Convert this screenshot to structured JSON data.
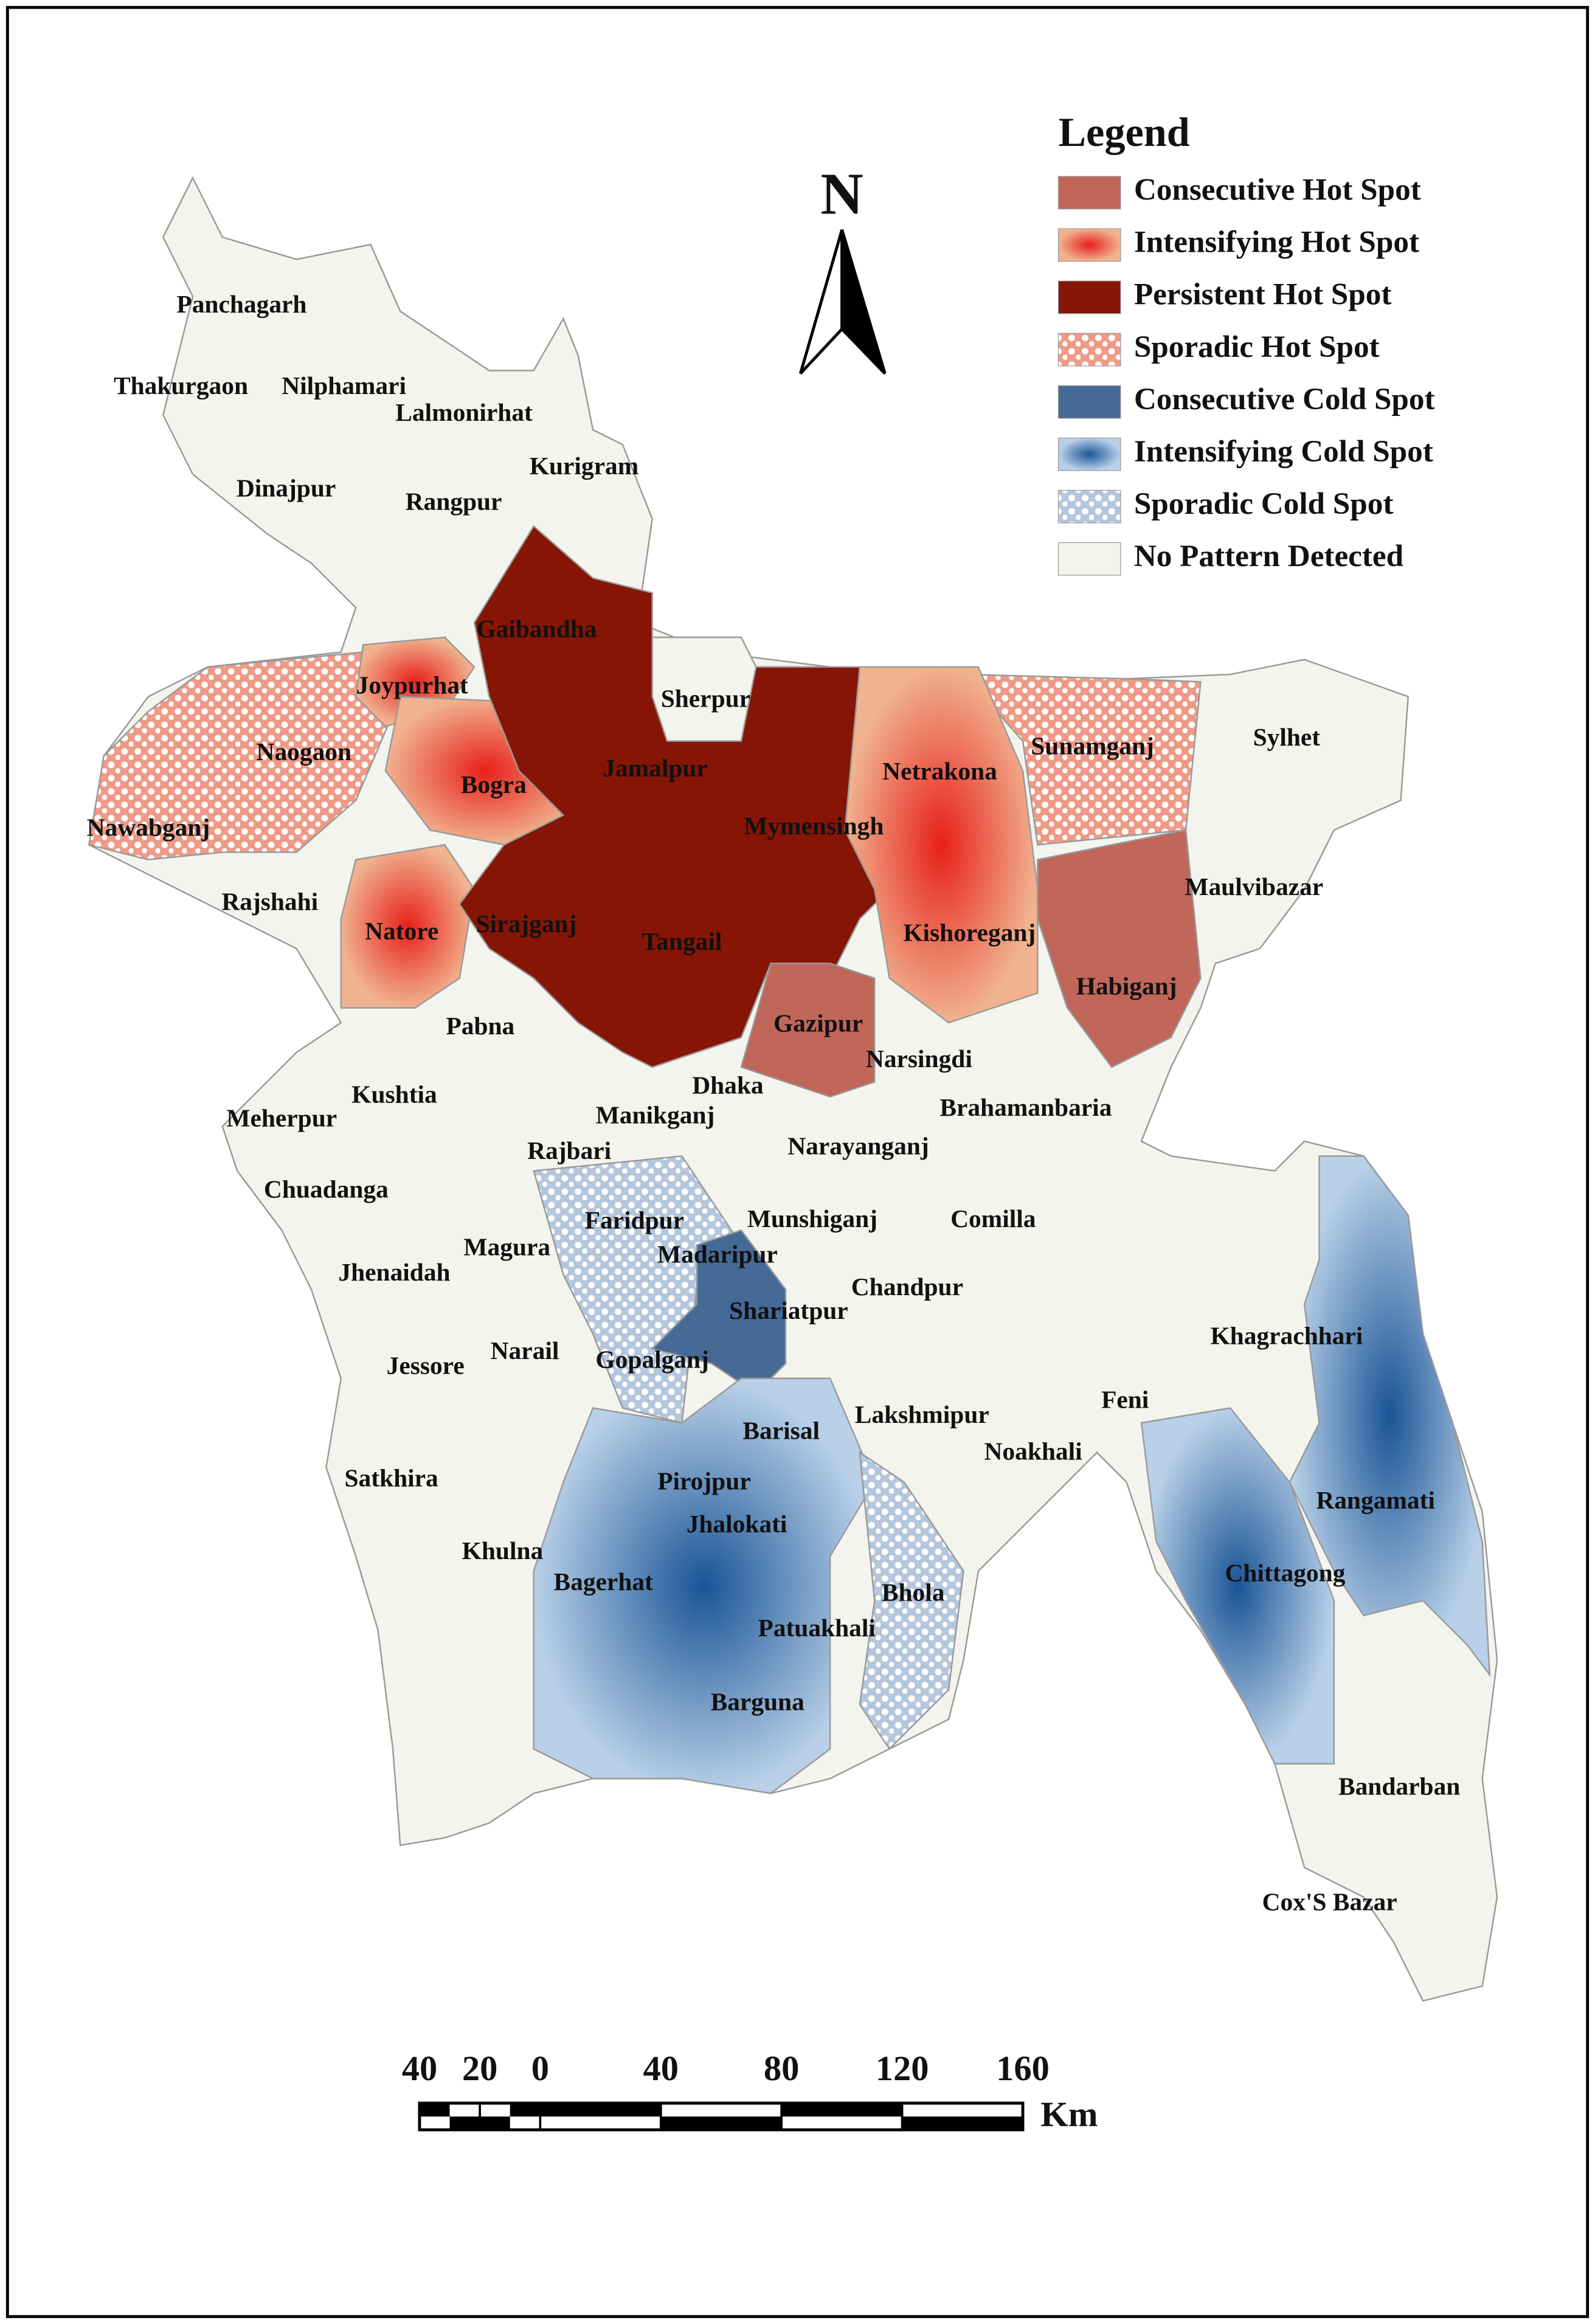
{
  "map": {
    "legend": {
      "title": "Legend",
      "items": [
        {
          "name": "Consecutive Hot Spot",
          "color": "#c0675a",
          "fill": "solid"
        },
        {
          "name": "Intensifying Hot Spot",
          "color": "#e8201a",
          "fill": "gradient"
        },
        {
          "name": "Persistent Hot Spot",
          "color": "#861505",
          "fill": "solid"
        },
        {
          "name": "Sporadic Hot Spot",
          "color": "#ee9a86",
          "fill": "dots"
        },
        {
          "name": "Consecutive Cold Spot",
          "color": "#466a96",
          "fill": "solid"
        },
        {
          "name": "Intensifying Cold Spot",
          "color": "#1e5a98",
          "fill": "gradient"
        },
        {
          "name": "Sporadic Cold Spot",
          "color": "#a9bdd6",
          "fill": "dots"
        },
        {
          "name": "No Pattern Detected",
          "color": "#f4f4ef",
          "fill": "solid"
        }
      ]
    },
    "north": "N",
    "districts": [
      "Panchagarh",
      "Thakurgaon",
      "Nilphamari",
      "Lalmonirhat",
      "Kurigram",
      "Dinajpur",
      "Rangpur",
      "Gaibandha",
      "Joypurhat",
      "Sherpur",
      "Naogaon",
      "Sunamganj",
      "Sylhet",
      "Jamalpur",
      "Netrakona",
      "Bogra",
      "Nawabganj",
      "Mymensingh",
      "Maulvibazar",
      "Rajshahi",
      "Natore",
      "Sirajganj",
      "Tangail",
      "Kishoreganj",
      "Habiganj",
      "Pabna",
      "Gazipur",
      "Narsingdi",
      "Dhaka",
      "Kushtia",
      "Meherpur",
      "Manikganj",
      "Brahamanbaria",
      "Rajbari",
      "Narayanganj",
      "Chuadanga",
      "Faridpur",
      "Munshiganj",
      "Comilla",
      "Magura",
      "Madaripur",
      "Jhenaidah",
      "Chandpur",
      "Shariatpur",
      "Khagrachhari",
      "Narail",
      "Gopalganj",
      "Jessore",
      "Feni",
      "Lakshmipur",
      "Barisal",
      "Noakhali",
      "Satkhira",
      "Pirojpur",
      "Rangamati",
      "Jhalokati",
      "Khulna",
      "Chittagong",
      "Bagerhat",
      "Bhola",
      "Patuakhali",
      "Barguna",
      "Bandarban",
      "Cox'S Bazar"
    ],
    "scale_bar": {
      "ticks": [
        {
          "value": -40,
          "label": "40"
        },
        {
          "value": -20,
          "label": "20"
        },
        0,
        40,
        80,
        120,
        160
      ],
      "unit": "Km"
    }
  }
}
